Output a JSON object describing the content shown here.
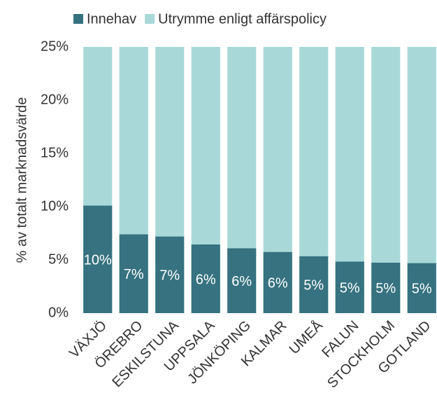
{
  "chart_data": {
    "type": "stacked_bar",
    "y_label": "% av totalt marknadsvärde",
    "categories": [
      "VÄXJÖ",
      "ÖREBRO",
      "ESKILSTUNA",
      "UPPSALA",
      "JÖNKÖPING",
      "KALMAR",
      "UMEÅ",
      "FALUN",
      "STOCKHOLM",
      "GOTLAND"
    ],
    "series": [
      {
        "name": "Innehav",
        "color": "#367280",
        "values": [
          10.1,
          7.4,
          7.2,
          6.45,
          6.1,
          5.75,
          5.35,
          4.85,
          4.75,
          4.7
        ],
        "value_labels": [
          "10%",
          "7%",
          "7%",
          "6%",
          "6%",
          "6%",
          "5%",
          "5%",
          "5%",
          "5%"
        ]
      },
      {
        "name": "Utrymme enligt affärspolicy",
        "color": "#a8d9d8",
        "values": [
          14.9,
          17.6,
          17.8,
          18.55,
          18.9,
          19.25,
          19.65,
          20.15,
          20.25,
          20.3
        ]
      }
    ],
    "ylim": [
      0,
      25
    ],
    "yticks": [
      {
        "value": 0,
        "label": "0%"
      },
      {
        "value": 5,
        "label": "5%"
      },
      {
        "value": 10,
        "label": "10%"
      },
      {
        "value": 15,
        "label": "15%"
      },
      {
        "value": 20,
        "label": "20%"
      },
      {
        "value": 25,
        "label": "25%"
      }
    ],
    "legend": "top"
  }
}
